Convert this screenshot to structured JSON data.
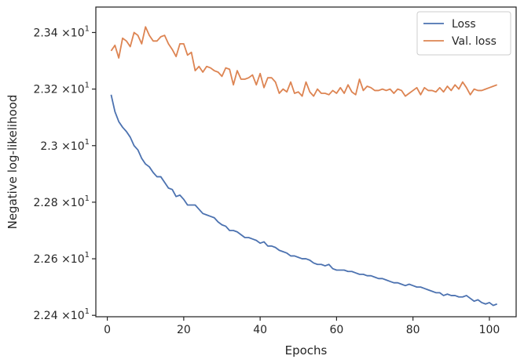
{
  "chart_data": {
    "type": "line",
    "xlabel": "Epochs",
    "ylabel": "Negative log-likelihood",
    "xlim": [
      -3,
      107
    ],
    "ylim": [
      22.395,
      23.49
    ],
    "x_ticks": [
      0,
      20,
      40,
      60,
      80,
      100
    ],
    "x_tick_labels": [
      "0",
      "20",
      "40",
      "60",
      "80",
      "100"
    ],
    "y_ticks": [
      22.4,
      22.6,
      22.8,
      23.0,
      23.2,
      23.4
    ],
    "y_tick_labels": [
      {
        "mant": "2.24",
        "exp": "1"
      },
      {
        "mant": "2.26",
        "exp": "1"
      },
      {
        "mant": "2.28",
        "exp": "1"
      },
      {
        "mant": "2.3",
        "exp": "1"
      },
      {
        "mant": "2.32",
        "exp": "1"
      },
      {
        "mant": "2.34",
        "exp": "1"
      }
    ],
    "y_tick_times": "×10",
    "grid": false,
    "legend_position": "top-right",
    "series": [
      {
        "name": "Loss",
        "color": "#4c72b0",
        "x_start": 1,
        "values": [
          23.18,
          23.12,
          23.085,
          23.065,
          23.05,
          23.03,
          23.0,
          22.985,
          22.955,
          22.935,
          22.925,
          22.905,
          22.89,
          22.89,
          22.87,
          22.85,
          22.845,
          22.82,
          22.825,
          22.81,
          22.79,
          22.79,
          22.79,
          22.775,
          22.76,
          22.755,
          22.75,
          22.745,
          22.73,
          22.72,
          22.715,
          22.7,
          22.7,
          22.695,
          22.685,
          22.675,
          22.675,
          22.67,
          22.665,
          22.655,
          22.66,
          22.645,
          22.645,
          22.64,
          22.63,
          22.625,
          22.62,
          22.61,
          22.61,
          22.605,
          22.6,
          22.6,
          22.595,
          22.585,
          22.58,
          22.58,
          22.575,
          22.58,
          22.565,
          22.56,
          22.56,
          22.56,
          22.555,
          22.555,
          22.55,
          22.545,
          22.545,
          22.54,
          22.54,
          22.535,
          22.53,
          22.53,
          22.525,
          22.52,
          22.515,
          22.515,
          22.51,
          22.505,
          22.51,
          22.505,
          22.5,
          22.5,
          22.495,
          22.49,
          22.485,
          22.48,
          22.48,
          22.47,
          22.475,
          22.47,
          22.47,
          22.465,
          22.465,
          22.47,
          22.46,
          22.45,
          22.455,
          22.445,
          22.44,
          22.445,
          22.435,
          22.44
        ]
      },
      {
        "name": "Val. loss",
        "color": "#dd8452",
        "x_start": 1,
        "values": [
          23.335,
          23.355,
          23.31,
          23.38,
          23.37,
          23.35,
          23.4,
          23.39,
          23.36,
          23.42,
          23.39,
          23.37,
          23.37,
          23.385,
          23.39,
          23.36,
          23.34,
          23.315,
          23.36,
          23.36,
          23.32,
          23.33,
          23.265,
          23.28,
          23.26,
          23.28,
          23.275,
          23.265,
          23.26,
          23.245,
          23.275,
          23.27,
          23.215,
          23.265,
          23.235,
          23.235,
          23.24,
          23.25,
          23.215,
          23.255,
          23.205,
          23.24,
          23.24,
          23.225,
          23.185,
          23.2,
          23.19,
          23.225,
          23.185,
          23.19,
          23.175,
          23.225,
          23.19,
          23.175,
          23.2,
          23.185,
          23.185,
          23.18,
          23.195,
          23.185,
          23.205,
          23.185,
          23.215,
          23.19,
          23.18,
          23.235,
          23.195,
          23.21,
          23.205,
          23.195,
          23.195,
          23.2,
          23.195,
          23.2,
          23.185,
          23.2,
          23.195,
          23.175,
          23.185,
          23.195,
          23.205,
          23.18,
          23.205,
          23.195,
          23.195,
          23.19,
          23.205,
          23.19,
          23.21,
          23.195,
          23.215,
          23.2,
          23.225,
          23.205,
          23.18,
          23.2,
          23.195,
          23.195,
          23.2,
          23.205,
          23.21,
          23.215
        ]
      }
    ]
  }
}
